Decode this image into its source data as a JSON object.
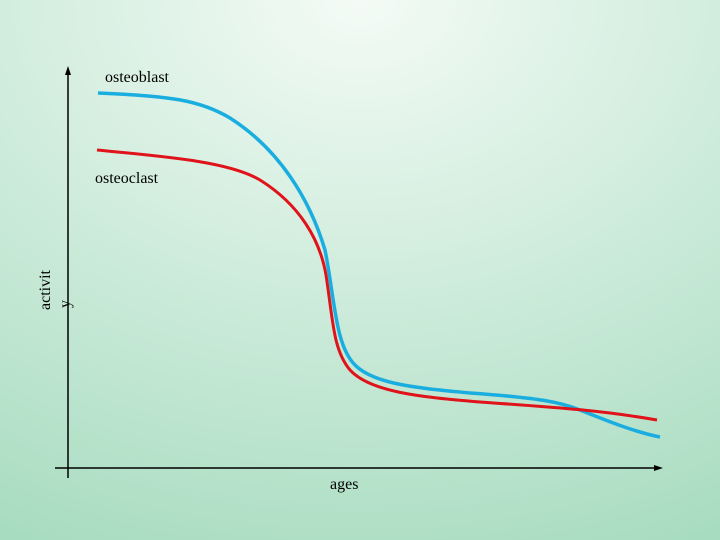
{
  "curve_labels": {
    "osteoblast": "osteoblast",
    "osteoclast": "osteoclast"
  },
  "axes": {
    "y_label_part1": "activit",
    "y_label_part2": "y",
    "x_label": "ages"
  }
}
